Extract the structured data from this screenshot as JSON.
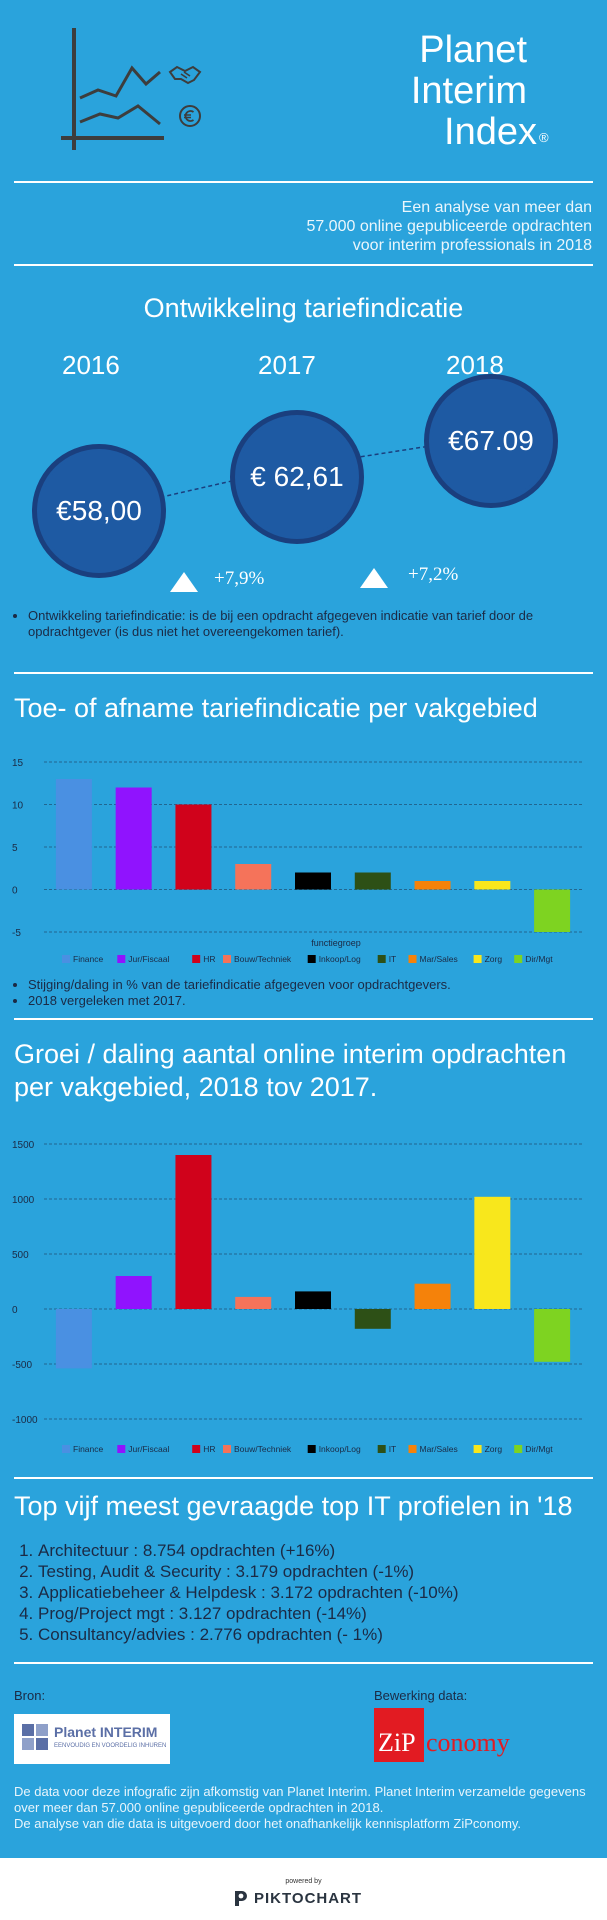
{
  "header": {
    "title_line1": "Planet",
    "title_line2": "Interim",
    "title_line3": "Index",
    "title_mark": "®",
    "subtitle_line1": "Een analyse van meer dan",
    "subtitle_line2": "57.000 online gepubliceerde opdrachten",
    "subtitle_line3": "voor interim professionals in 2018",
    "icons": [
      "line-chart-icon",
      "handshake-icon",
      "euro-icon"
    ]
  },
  "tarief": {
    "title": "Ontwikkeling tariefindicatie",
    "years": [
      "2016",
      "2017",
      "2018"
    ],
    "values": [
      "€58,00",
      "€ 62,61",
      "€67.09"
    ],
    "growth": [
      "+7,9%",
      "+7,2%"
    ],
    "note": "Ontwikkeling tariefindicatie: is de bij een opdracht afgegeven indicatie van tarief door de opdrachtgever (is dus niet het overeengekomen tarief)."
  },
  "chart_data": [
    {
      "type": "bar",
      "title": "Toe- of afname tariefindicatie  per vakgebied",
      "xlabel": "functiegroep",
      "categories": [
        "Finance",
        "Jur/Fiscaal",
        "HR",
        "Bouw/Techniek",
        "Inkoop/Log",
        "IT",
        "Mar/Sales",
        "Zorg",
        "Dir/Mgt"
      ],
      "values": [
        13,
        12,
        10,
        3,
        2,
        2,
        1,
        1,
        -5
      ],
      "colors": [
        "#4a90e2",
        "#9013fe",
        "#d0021b",
        "#f5735a",
        "#000000",
        "#2d5016",
        "#f5820a",
        "#f8e71c",
        "#7ed321"
      ],
      "yticks": [
        15,
        10,
        5,
        0,
        -5
      ],
      "ylim": [
        -5,
        15
      ],
      "grid": true,
      "legend": "bottom"
    },
    {
      "type": "bar",
      "title": "Groei / daling aantal online  interim opdrachten per vakgebied, 2018  tov 2017.",
      "categories": [
        "Finance",
        "Jur/Fiscaal",
        "HR",
        "Bouw/Techniek",
        "Inkoop/Log",
        "IT",
        "Mar/Sales",
        "Zorg",
        "Dir/Mgt"
      ],
      "values": [
        -540,
        300,
        1400,
        110,
        160,
        -180,
        230,
        1020,
        -480
      ],
      "colors": [
        "#4a90e2",
        "#9013fe",
        "#d0021b",
        "#f5735a",
        "#000000",
        "#2d5016",
        "#f5820a",
        "#f8e71c",
        "#7ed321"
      ],
      "yticks": [
        1500,
        1000,
        500,
        0,
        -500,
        -1000
      ],
      "ylim": [
        -1000,
        1500
      ],
      "grid": true,
      "legend": "bottom"
    }
  ],
  "notes2": [
    "Stijging/daling in % van de tariefindicatie afgegeven voor opdrachtgevers.",
    "2018 vergeleken met 2017."
  ],
  "top5": {
    "title": "Top vijf meest gevraagde top IT profielen in '18",
    "items": [
      "Architectuur : 8.754  opdrachten (+16%)",
      "Testing, Audit & Security : 3.179 opdrachten (-1%)",
      "Applicatiebeheer & Helpdesk : 3.172 opdrachten (-10%)",
      "Prog/Project mgt : 3.127 opdrachten (-14%)",
      "Consultancy/advies : 2.776 opdrachten (- 1%)"
    ]
  },
  "sources": {
    "bron_label": "Bron:",
    "bewerking_label": "Bewerking data:",
    "planet_logo_main": "Planet INTERIM",
    "planet_logo_tag": "EENVOUDIG EN VOORDELIG INHUREN",
    "zip_logo_a": "ZiP",
    "zip_logo_b": "conomy",
    "text1": "De data voor deze infografic zijn afkomstig van Planet Interim. Planet Interim verzamelde gegevens over meer dan 57.000 online gepubliceerde opdrachten in 2018.",
    "text2": "De analyse van die data is uitgevoerd door het onafhankelijk kennisplatform ZiPconomy."
  },
  "footer": {
    "powered": "powered by",
    "brand": "PIKTOCHART"
  }
}
